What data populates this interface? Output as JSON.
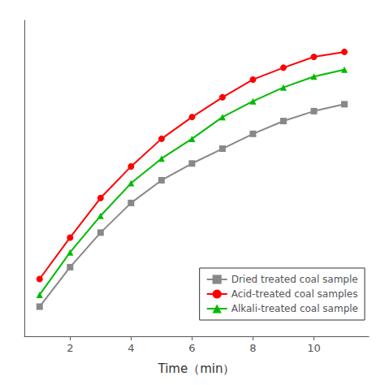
{
  "chart_data": {
    "type": "line",
    "xlabel": "Time（min）",
    "x": [
      1,
      2,
      3,
      4,
      5,
      6,
      7,
      8,
      9,
      10,
      11
    ],
    "series": [
      {
        "name": "Dried treated coal sample",
        "color": "#888888",
        "marker": "square",
        "values": [
          0.3,
          0.7,
          1.05,
          1.35,
          1.58,
          1.75,
          1.9,
          2.05,
          2.18,
          2.28,
          2.35
        ]
      },
      {
        "name": "Acid-treated coal samples",
        "color": "#ff0000",
        "marker": "circle",
        "values": [
          0.58,
          1.0,
          1.4,
          1.72,
          2.0,
          2.22,
          2.42,
          2.6,
          2.72,
          2.83,
          2.88
        ]
      },
      {
        "name": "Alkali-treated coal sample",
        "color": "#00bb00",
        "marker": "triangle",
        "values": [
          0.42,
          0.85,
          1.22,
          1.55,
          1.8,
          2.0,
          2.22,
          2.38,
          2.52,
          2.63,
          2.7
        ]
      }
    ],
    "xlim": [
      0.5,
      11.8
    ],
    "xticks": [
      2,
      4,
      6,
      8,
      10
    ],
    "ylim": [
      0.0,
      3.2
    ],
    "tick_labels": "x",
    "grid": false,
    "legend": "lower right"
  }
}
